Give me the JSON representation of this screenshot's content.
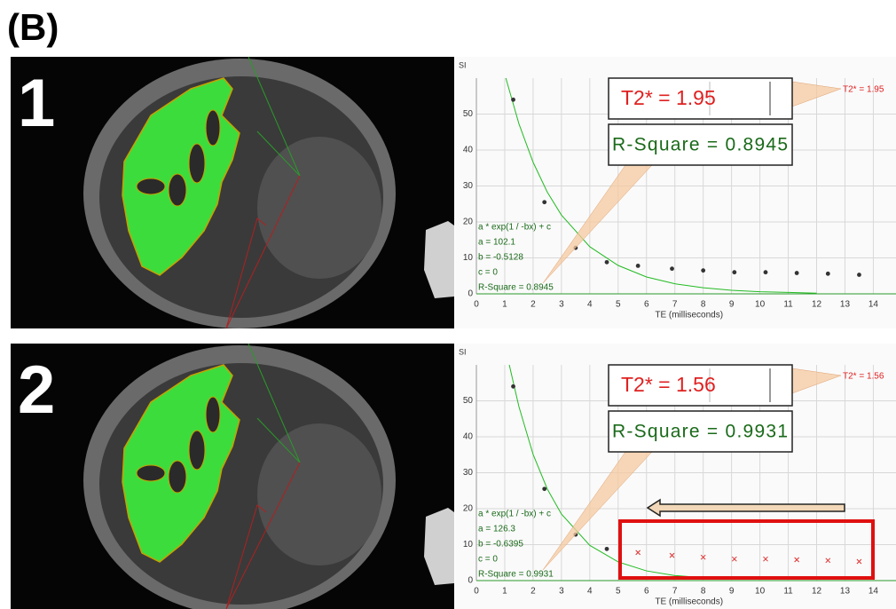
{
  "figure_label": "(B)",
  "chart_data": [
    {
      "type": "scatter",
      "panel_label": "1",
      "y_label": "SI",
      "x_label": "TE (milliseconds)",
      "xlim": [
        0,
        14.8
      ],
      "ylim": [
        0,
        60
      ],
      "xticks": [
        0,
        1,
        2,
        3,
        4,
        5,
        6,
        7,
        8,
        9,
        10,
        11,
        12,
        13,
        14
      ],
      "yticks": [
        0,
        10,
        20,
        30,
        40,
        50
      ],
      "grid": true,
      "points": {
        "color": "#333333",
        "x": [
          1.3,
          2.4,
          3.5,
          4.6,
          5.7,
          6.9,
          8.0,
          9.1,
          10.2,
          11.3,
          12.4,
          13.5
        ],
        "values": [
          54,
          25.5,
          12.8,
          8.8,
          7.8,
          7,
          6.5,
          6,
          6,
          5.8,
          5.6,
          5.3
        ]
      },
      "fit": {
        "color": "#22bb22",
        "x": [
          1.04,
          1.5,
          2,
          2.5,
          3,
          4,
          5,
          6,
          7,
          8,
          9,
          10,
          11,
          12
        ],
        "values": [
          60,
          47.3,
          36.6,
          28.3,
          21.9,
          13.1,
          7.9,
          4.7,
          2.8,
          1.7,
          1.0,
          0.6,
          0.4,
          0.2
        ]
      },
      "fit_text": [
        "a * exp(1 / -bx) + c",
        "a = 102.1",
        "b = -0.5128",
        "c = 0",
        "R-Square = 0.8945"
      ],
      "callout_t2": "T2* = 1.95",
      "callout_r2": "R-Square = 0.8945",
      "t2_label": "T2* = 1.95"
    },
    {
      "type": "scatter",
      "panel_label": "2",
      "y_label": "SI",
      "x_label": "TE (milliseconds)",
      "xlim": [
        0,
        14.8
      ],
      "ylim": [
        0,
        60
      ],
      "xticks": [
        0,
        1,
        2,
        3,
        4,
        5,
        6,
        7,
        8,
        9,
        10,
        11,
        12,
        13,
        14
      ],
      "yticks": [
        0,
        10,
        20,
        30,
        40,
        50
      ],
      "grid": true,
      "points": {
        "color": "#333333",
        "x": [
          1.3,
          2.4,
          3.5,
          4.6
        ],
        "values": [
          54,
          25.5,
          12.8,
          8.8
        ]
      },
      "excluded_points": {
        "color": "#e03030",
        "x": [
          5.7,
          6.9,
          8.0,
          9.1,
          10.2,
          11.3,
          12.4,
          13.5
        ],
        "values": [
          7.8,
          7,
          6.5,
          6,
          6,
          5.8,
          5.6,
          5.3
        ]
      },
      "fit": {
        "color": "#22bb22",
        "x": [
          1.16,
          1.5,
          2,
          2.5,
          3,
          4,
          5,
          6,
          7,
          8,
          9
        ],
        "values": [
          60,
          48.4,
          35.1,
          25.5,
          18.5,
          9.8,
          5.2,
          2.7,
          1.4,
          0.8,
          0.4
        ]
      },
      "fit_text": [
        "a * exp(1 / -bx) + c",
        "a = 126.3",
        "b = -0.6395",
        "c = 0",
        "R-Square = 0.9931"
      ],
      "callout_t2": "T2* = 1.56",
      "callout_r2": "R-Square = 0.9931",
      "t2_label": "T2* = 1.56"
    }
  ]
}
